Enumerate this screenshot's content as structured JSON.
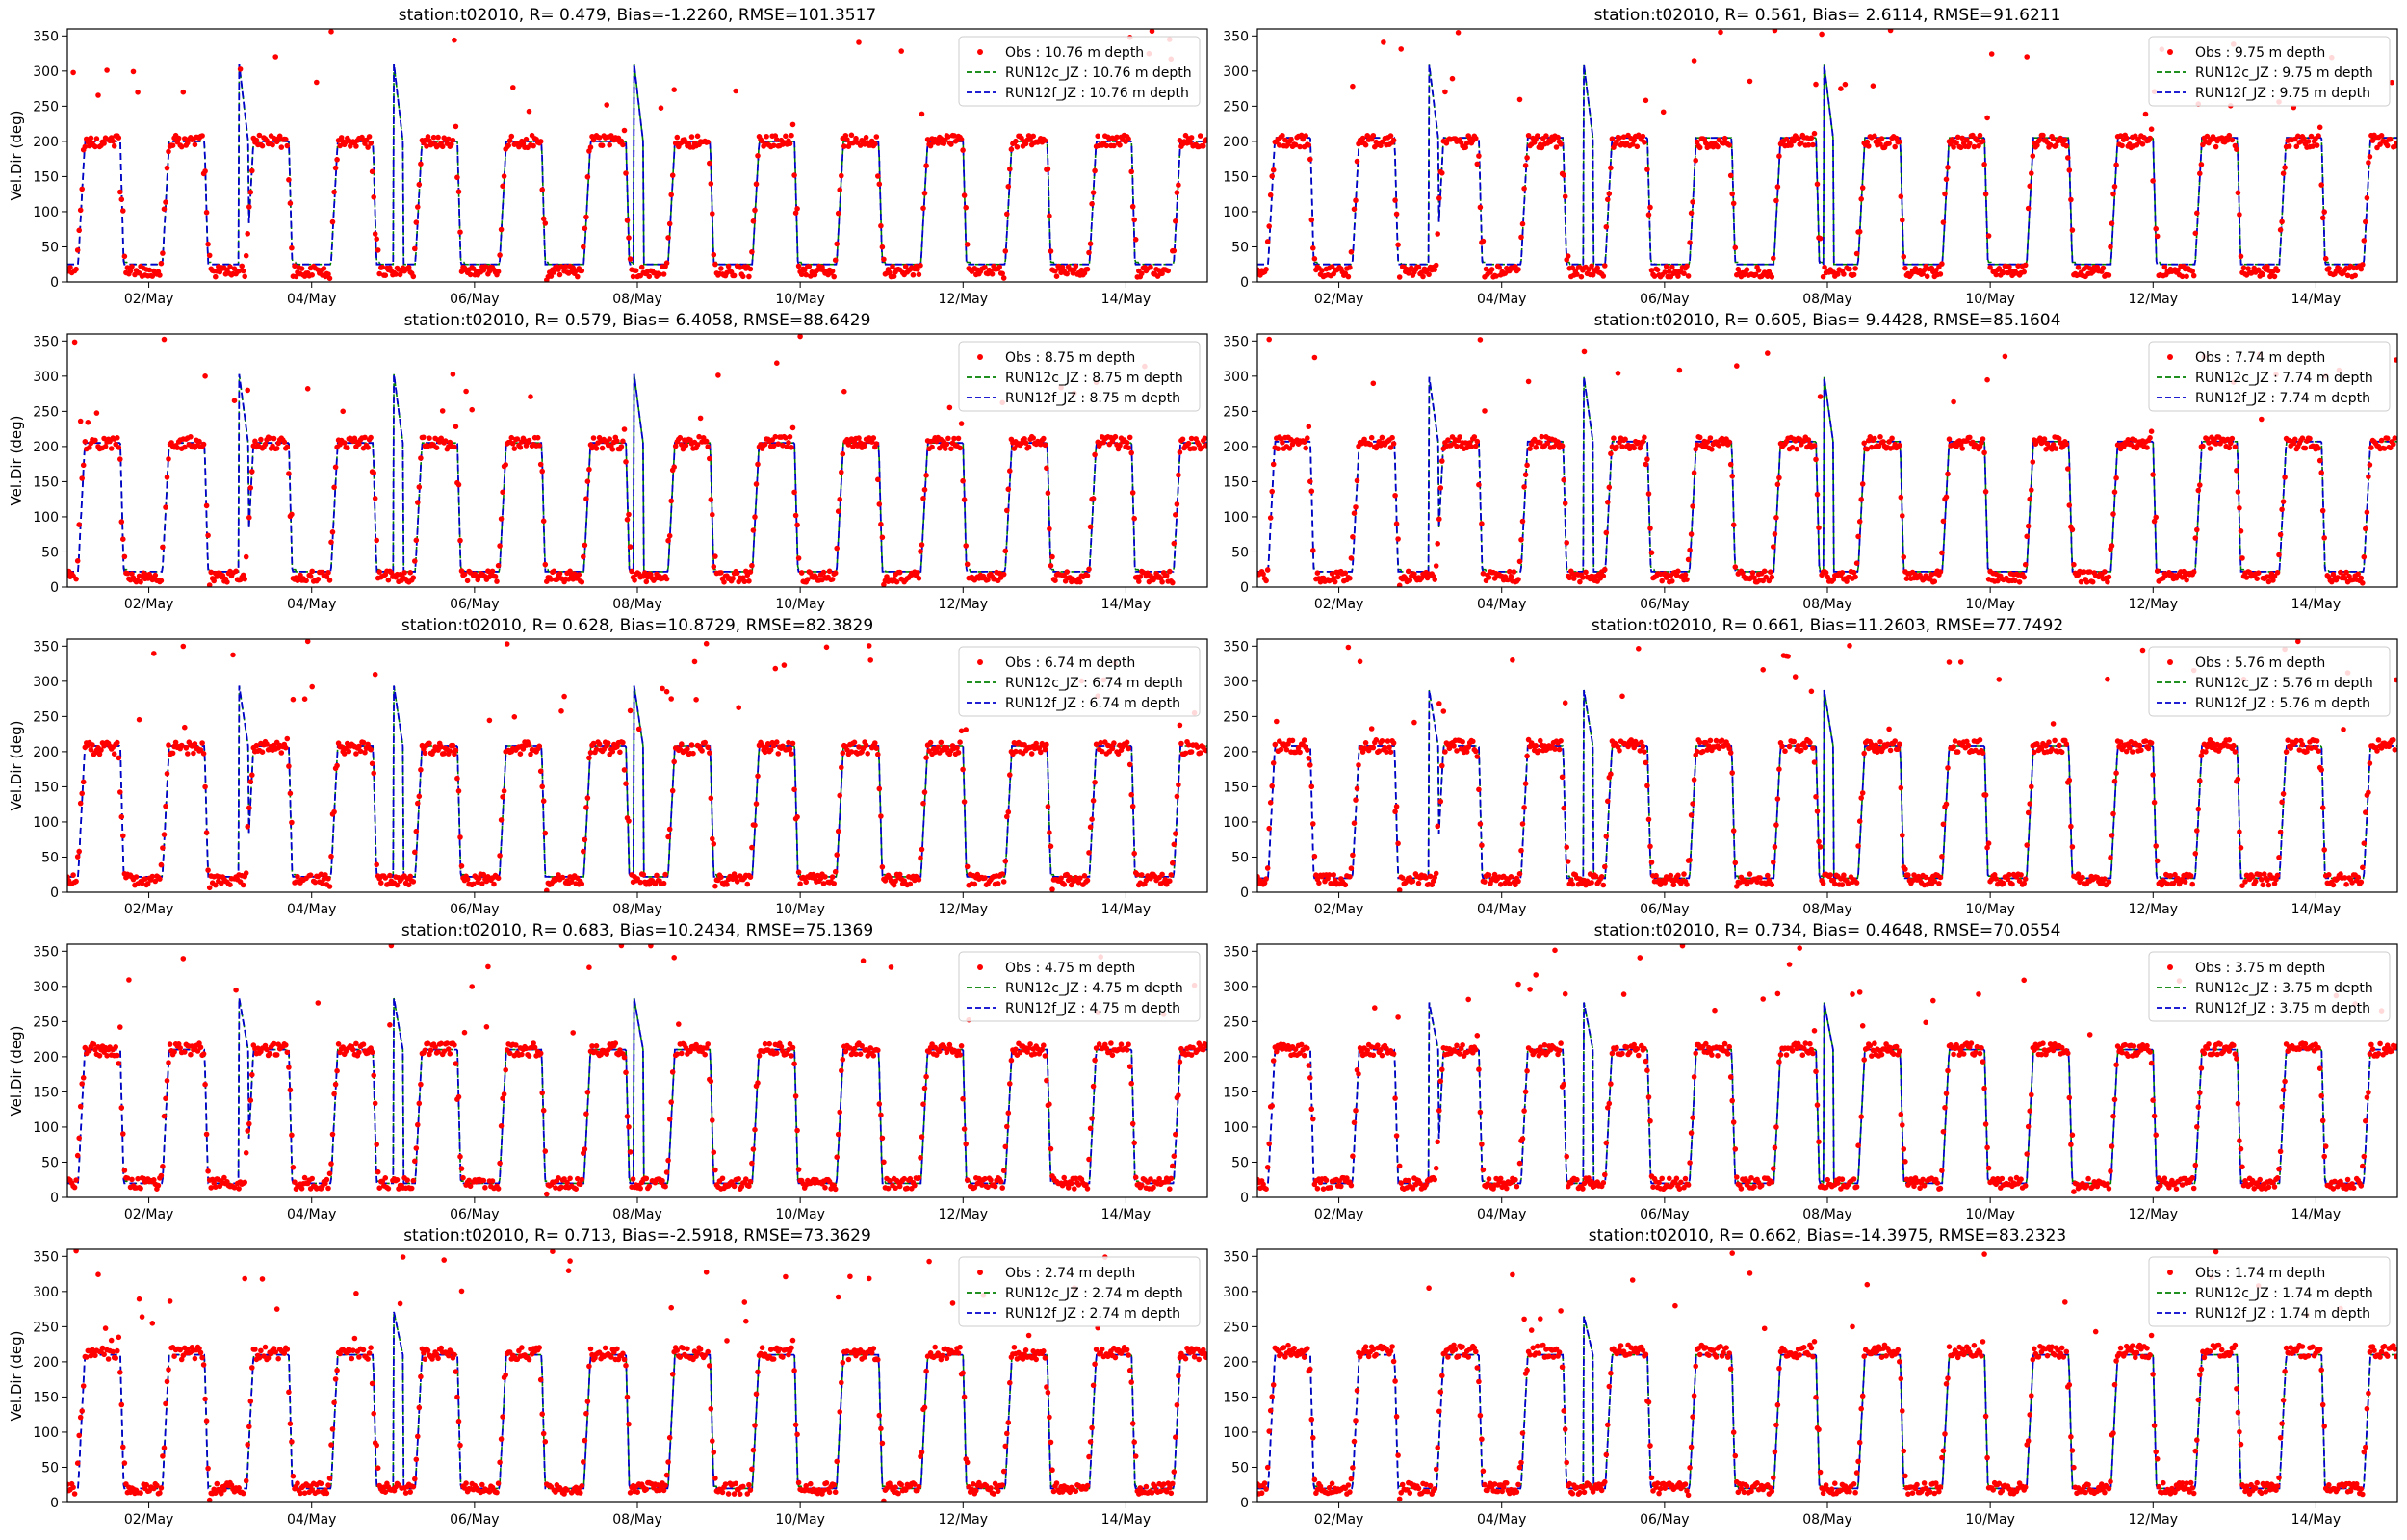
{
  "chart_data": [
    {
      "type": "line",
      "title": "station:t02010, R= 0.479, Bias=-1.2260, RMSE=101.3517",
      "ylabel": "Vel.Dir (deg)",
      "ylim": [
        0,
        360
      ],
      "xticks": [
        "02/May",
        "04/May",
        "06/May",
        "08/May",
        "10/May",
        "12/May",
        "14/May"
      ],
      "legend": [
        "Obs : 10.76 m depth",
        "RUN12c_JZ : 10.76 m depth",
        "RUN12f_JZ : 10.76 m depth"
      ],
      "legend_loc": "upper right"
    },
    {
      "type": "line",
      "title": "station:t02010, R= 0.561, Bias= 2.6114, RMSE=91.6211",
      "ylabel": "",
      "ylim": [
        0,
        360
      ],
      "xticks": [
        "02/May",
        "04/May",
        "06/May",
        "08/May",
        "10/May",
        "12/May",
        "14/May"
      ],
      "legend": [
        "Obs : 9.75 m depth",
        "RUN12c_JZ : 9.75 m depth",
        "RUN12f_JZ : 9.75 m depth"
      ],
      "legend_loc": "upper right"
    },
    {
      "type": "line",
      "title": "station:t02010, R= 0.579, Bias= 6.4058, RMSE=88.6429",
      "ylabel": "Vel.Dir (deg)",
      "ylim": [
        0,
        360
      ],
      "xticks": [
        "02/May",
        "04/May",
        "06/May",
        "08/May",
        "10/May",
        "12/May",
        "14/May"
      ],
      "legend": [
        "Obs : 8.75 m depth",
        "RUN12c_JZ : 8.75 m depth",
        "RUN12f_JZ : 8.75 m depth"
      ],
      "legend_loc": "upper right"
    },
    {
      "type": "line",
      "title": "station:t02010, R= 0.605, Bias= 9.4428, RMSE=85.1604",
      "ylabel": "",
      "ylim": [
        0,
        360
      ],
      "xticks": [
        "02/May",
        "04/May",
        "06/May",
        "08/May",
        "10/May",
        "12/May",
        "14/May"
      ],
      "legend": [
        "Obs : 7.74 m depth",
        "RUN12c_JZ : 7.74 m depth",
        "RUN12f_JZ : 7.74 m depth"
      ],
      "legend_loc": "upper right"
    },
    {
      "type": "line",
      "title": "station:t02010, R= 0.628, Bias=10.8729, RMSE=82.3829",
      "ylabel": "Vel.Dir (deg)",
      "ylim": [
        0,
        360
      ],
      "xticks": [
        "02/May",
        "04/May",
        "06/May",
        "08/May",
        "10/May",
        "12/May",
        "14/May"
      ],
      "legend": [
        "Obs : 6.74 m depth",
        "RUN12c_JZ : 6.74 m depth",
        "RUN12f_JZ : 6.74 m depth"
      ],
      "legend_loc": "upper right"
    },
    {
      "type": "line",
      "title": "station:t02010, R= 0.661, Bias=11.2603, RMSE=77.7492",
      "ylabel": "",
      "ylim": [
        0,
        360
      ],
      "xticks": [
        "02/May",
        "04/May",
        "06/May",
        "08/May",
        "10/May",
        "12/May",
        "14/May"
      ],
      "legend": [
        "Obs : 5.76 m depth",
        "RUN12c_JZ : 5.76 m depth",
        "RUN12f_JZ : 5.76 m depth"
      ],
      "legend_loc": "upper right"
    },
    {
      "type": "line",
      "title": "station:t02010, R= 0.683, Bias=10.2434, RMSE=75.1369",
      "ylabel": "Vel.Dir (deg)",
      "ylim": [
        0,
        360
      ],
      "xticks": [
        "02/May",
        "04/May",
        "06/May",
        "08/May",
        "10/May",
        "12/May",
        "14/May"
      ],
      "legend": [
        "Obs : 4.75 m depth",
        "RUN12c_JZ : 4.75 m depth",
        "RUN12f_JZ : 4.75 m depth"
      ],
      "legend_loc": "upper right"
    },
    {
      "type": "line",
      "title": "station:t02010, R= 0.734, Bias= 0.4648, RMSE=70.0554",
      "ylabel": "",
      "ylim": [
        0,
        360
      ],
      "xticks": [
        "02/May",
        "04/May",
        "06/May",
        "08/May",
        "10/May",
        "12/May",
        "14/May"
      ],
      "legend": [
        "Obs : 3.75 m depth",
        "RUN12c_JZ : 3.75 m depth",
        "RUN12f_JZ : 3.75 m depth"
      ],
      "legend_loc": "upper right"
    },
    {
      "type": "line",
      "title": "station:t02010, R= 0.713, Bias=-2.5918, RMSE=73.3629",
      "ylabel": "Vel.Dir (deg)",
      "ylim": [
        0,
        360
      ],
      "xticks": [
        "02/May",
        "04/May",
        "06/May",
        "08/May",
        "10/May",
        "12/May",
        "14/May"
      ],
      "legend": [
        "Obs : 2.74 m depth",
        "RUN12c_JZ : 2.74 m depth",
        "RUN12f_JZ : 2.74 m depth"
      ],
      "legend_loc": "upper right"
    },
    {
      "type": "line",
      "title": "station:t02010, R= 0.662, Bias=-14.3975, RMSE=83.2323",
      "ylabel": "",
      "ylim": [
        0,
        360
      ],
      "xticks": [
        "02/May",
        "04/May",
        "06/May",
        "08/May",
        "10/May",
        "12/May",
        "14/May"
      ],
      "legend": [
        "Obs : 1.74 m depth",
        "RUN12c_JZ : 1.74 m depth",
        "RUN12f_JZ : 1.74 m depth"
      ],
      "legend_loc": "upper right"
    }
  ],
  "common": {
    "yticks": [
      0,
      50,
      100,
      150,
      200,
      250,
      300,
      350
    ],
    "x_days": [
      1,
      15
    ],
    "model_flood_deg": [
      200,
      205,
      205,
      207,
      208,
      208,
      210,
      210,
      210,
      210
    ],
    "model_ebb_deg": [
      25,
      25,
      22,
      22,
      22,
      20,
      20,
      20,
      20,
      20
    ],
    "obs_flood_deg": [
      200,
      200,
      205,
      205,
      205,
      208,
      210,
      210,
      212,
      215
    ],
    "obs_ebb_deg": [
      15,
      15,
      15,
      15,
      18,
      18,
      20,
      20,
      20,
      20
    ],
    "colors": {
      "obs": "#ff0000",
      "run12c": "#008000",
      "run12f": "#0000cc",
      "axes": "#000000"
    }
  }
}
